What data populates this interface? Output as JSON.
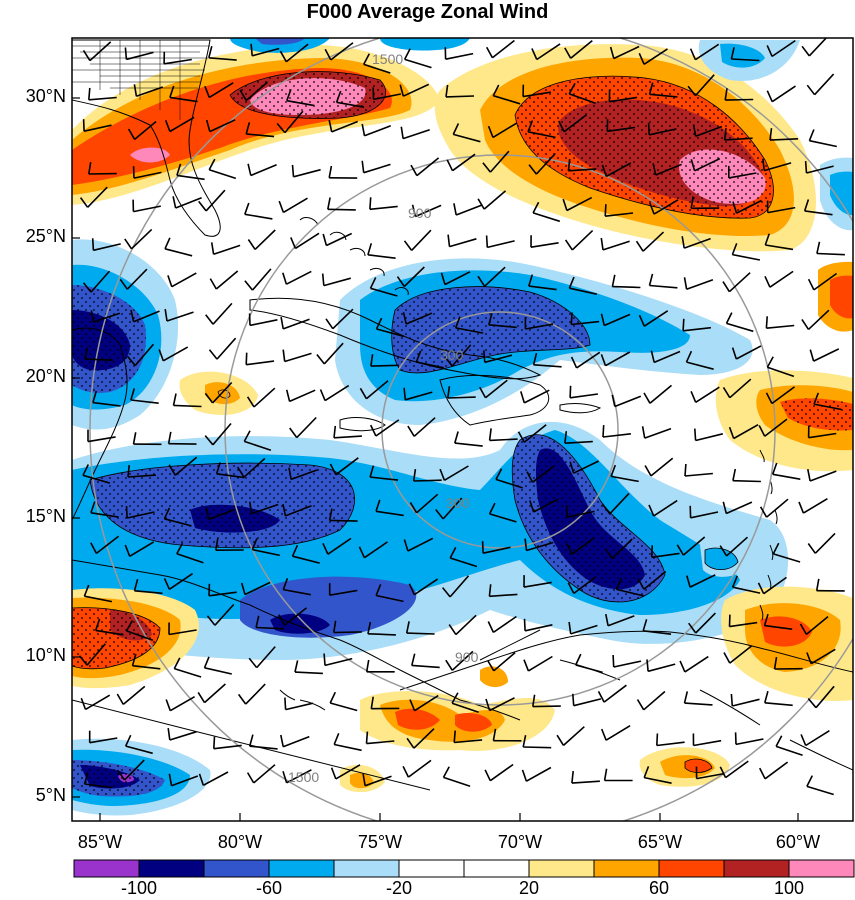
{
  "title": "F000 Average Zonal Wind",
  "map": {
    "lat_ticks": [
      "30°N",
      "25°N",
      "20°N",
      "15°N",
      "10°N",
      "5°N"
    ],
    "lon_ticks": [
      "85°W",
      "80°W",
      "75°W",
      "70°W",
      "65°W",
      "60°W"
    ],
    "extent": {
      "lon_min": -86.0,
      "lon_max": -58.2,
      "lat_min": 4.2,
      "lat_max": 32.2
    },
    "range_rings": [
      {
        "label": "300",
        "value": 300
      },
      {
        "label": "900",
        "value": 900
      },
      {
        "label": "1500",
        "value": 1500
      }
    ]
  },
  "colorbar": {
    "labels": [
      "-100",
      "-60",
      "-20",
      "20",
      "60",
      "100"
    ],
    "colors": [
      "#9933cc",
      "#000080",
      "#3355cc",
      "#00aaee",
      "#aaddf7",
      "#ffffff",
      "#ffffff",
      "#ffe88a",
      "#ffa500",
      "#ff4500",
      "#b22222",
      "#ff88bb"
    ]
  },
  "palette": {
    "strong_neg": "#000080",
    "mid_neg": "#3355cc",
    "neg": "#00aaee",
    "weak_neg": "#aaddf7",
    "weak_pos": "#ffe88a",
    "pos": "#ffa500",
    "mid_pos": "#ff4500",
    "strong_pos": "#b22222",
    "max_pos": "#ff88bb",
    "ring": "#999999"
  }
}
